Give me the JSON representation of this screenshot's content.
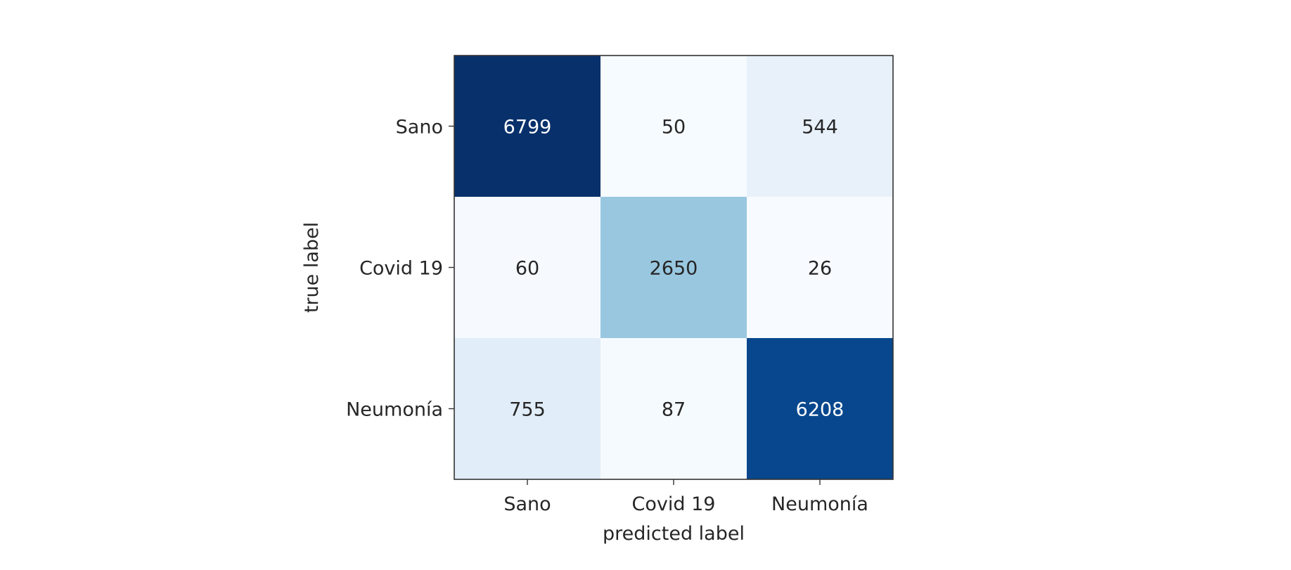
{
  "chart_data": {
    "type": "heatmap",
    "title": "",
    "xlabel": "predicted label",
    "ylabel": "true label",
    "x_categories": [
      "Sano",
      "Covid 19",
      "Neumonía"
    ],
    "y_categories": [
      "Sano",
      "Covid 19",
      "Neumonía"
    ],
    "values": [
      [
        6799,
        50,
        544
      ],
      [
        60,
        2650,
        26
      ],
      [
        755,
        87,
        6208
      ]
    ],
    "colormap": "Blues",
    "colorbar": false,
    "grid": false,
    "colors": {
      "low": "#f7fbff",
      "high": "#08306b",
      "text_dark": "#262626",
      "text_light": "#ffffff",
      "axis": "#333333"
    }
  }
}
